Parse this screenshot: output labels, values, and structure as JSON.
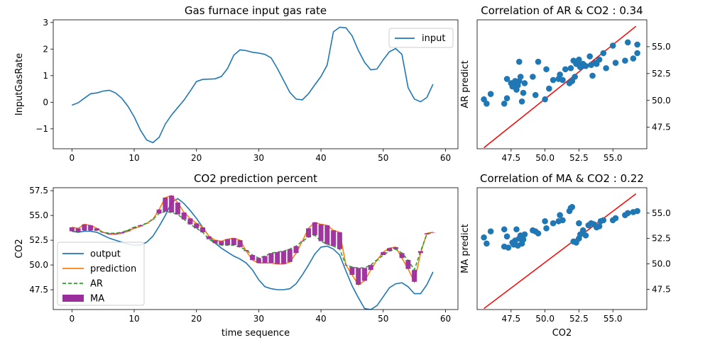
{
  "chart_data": [
    {
      "type": "line",
      "title": "Gas furnace input gas rate",
      "xlabel": "",
      "ylabel": "InputGasRate",
      "xlim": [
        -3,
        62
      ],
      "ylim": [
        -1.75,
        3.1
      ],
      "xticks": [
        0,
        10,
        20,
        30,
        40,
        50,
        60
      ],
      "yticks": [
        -1,
        0,
        1,
        2,
        3
      ],
      "xtick_labels": [
        "0",
        "10",
        "20",
        "30",
        "40",
        "50",
        "60"
      ],
      "ytick_labels": [
        "−1",
        "0",
        "1",
        "2",
        "3"
      ],
      "legend": "top-right",
      "series": [
        {
          "name": "input",
          "color": "#1f77b4",
          "values": [
            -0.11,
            -0.02,
            0.15,
            0.32,
            0.35,
            0.42,
            0.45,
            0.35,
            0.15,
            -0.15,
            -0.55,
            -1.05,
            -1.42,
            -1.52,
            -1.32,
            -0.82,
            -0.48,
            -0.2,
            0.08,
            0.42,
            0.78,
            0.86,
            0.87,
            0.88,
            0.97,
            1.27,
            1.77,
            1.97,
            1.94,
            1.88,
            1.85,
            1.8,
            1.67,
            1.27,
            0.82,
            0.37,
            0.12,
            0.09,
            0.32,
            0.65,
            0.97,
            1.4,
            2.65,
            2.82,
            2.8,
            2.5,
            1.95,
            1.5,
            1.22,
            1.25,
            1.6,
            1.9,
            2.02,
            1.8,
            0.55,
            0.12,
            0.02,
            0.18,
            0.68
          ]
        }
      ]
    },
    {
      "type": "line",
      "title": "CO2 prediction percent",
      "xlabel": "time sequence",
      "ylabel": "CO2",
      "xlim": [
        -3,
        62
      ],
      "ylim": [
        45.5,
        57.8
      ],
      "xticks": [
        0,
        10,
        20,
        30,
        40,
        50,
        60
      ],
      "yticks": [
        47.5,
        50.0,
        52.5,
        55.0,
        57.5
      ],
      "xtick_labels": [
        "0",
        "10",
        "20",
        "30",
        "40",
        "50",
        "60"
      ],
      "ytick_labels": [
        "47.5",
        "50.0",
        "52.5",
        "55.0",
        "57.5"
      ],
      "legend": "bottom-left",
      "series": [
        {
          "name": "output",
          "color": "#1f77b4",
          "style": "solid",
          "values": [
            53.4,
            53.3,
            53.4,
            53.4,
            53.3,
            53.0,
            52.7,
            52.5,
            52.3,
            52.1,
            52.0,
            52.0,
            52.3,
            52.9,
            53.9,
            55.0,
            56.3,
            56.7,
            56.2,
            55.5,
            54.7,
            53.8,
            52.9,
            52.2,
            51.7,
            51.3,
            50.9,
            50.6,
            50.2,
            49.5,
            48.5,
            47.8,
            47.6,
            47.5,
            47.5,
            47.6,
            48.1,
            49.0,
            50.0,
            51.1,
            51.8,
            51.9,
            51.6,
            51.0,
            49.4,
            47.9,
            46.7,
            45.6,
            45.5,
            45.9,
            46.8,
            47.7,
            48.1,
            48.2,
            47.8,
            47.1,
            47.1,
            48.0,
            49.3
          ]
        },
        {
          "name": "prediction",
          "color": "#ff7f0e",
          "style": "solid",
          "values": [
            53.8,
            53.7,
            54.1,
            54.0,
            53.7,
            53.3,
            53.1,
            53.1,
            53.2,
            53.4,
            53.7,
            53.9,
            54.2,
            54.6,
            55.6,
            56.8,
            57.0,
            56.3,
            55.3,
            54.7,
            54.2,
            53.8,
            52.9,
            52.5,
            52.4,
            52.6,
            52.7,
            52.5,
            51.4,
            50.5,
            50.2,
            50.2,
            50.2,
            50.1,
            50.1,
            50.3,
            51.2,
            52.4,
            53.7,
            54.3,
            54.1,
            54.0,
            53.5,
            53.3,
            50.0,
            49.0,
            48.0,
            48.4,
            49.5,
            50.5,
            51.3,
            51.7,
            51.8,
            50.7,
            49.6,
            48.3,
            51.2,
            53.2,
            53.3
          ]
        },
        {
          "name": "AR",
          "color": "#2ca02c",
          "style": "dashed",
          "values": [
            53.4,
            53.3,
            53.5,
            53.5,
            53.5,
            53.3,
            53.2,
            53.2,
            53.3,
            53.5,
            53.8,
            54.0,
            54.2,
            54.6,
            55.2,
            55.4,
            55.3,
            55.1,
            54.6,
            54.1,
            53.7,
            53.3,
            52.6,
            52.2,
            52.0,
            52.0,
            52.0,
            51.8,
            51.5,
            51.0,
            50.7,
            50.9,
            51.2,
            51.3,
            51.4,
            51.6,
            51.9,
            52.4,
            52.8,
            53.0,
            52.4,
            52.1,
            51.9,
            51.6,
            50.0,
            49.8,
            49.7,
            49.7,
            50.0,
            50.5,
            51.0,
            51.4,
            51.6,
            51.2,
            50.5,
            49.5,
            51.4,
            53.1,
            53.3
          ]
        },
        {
          "name": "MA",
          "color": "#9b2c9c",
          "style": "bars",
          "values": [
            0.4,
            0.4,
            0.6,
            0.5,
            0.2,
            0.0,
            -0.1,
            -0.1,
            -0.1,
            -0.1,
            -0.1,
            -0.1,
            0.0,
            0.0,
            0.4,
            1.4,
            1.7,
            1.2,
            0.7,
            0.6,
            0.5,
            0.5,
            0.3,
            0.3,
            0.4,
            0.6,
            0.7,
            0.7,
            -0.1,
            -0.5,
            -0.5,
            -0.7,
            -1.0,
            -1.2,
            -1.3,
            -1.3,
            -0.7,
            0.0,
            0.9,
            1.3,
            1.7,
            1.9,
            1.6,
            1.7,
            0.0,
            -0.8,
            -1.7,
            -1.3,
            -0.5,
            0.0,
            0.3,
            0.3,
            0.2,
            -0.5,
            -0.9,
            -1.2,
            -0.2,
            0.1,
            0.0
          ]
        }
      ]
    },
    {
      "type": "scatter",
      "title": "Correlation of AR & CO2 : 0.34",
      "xlabel": "",
      "ylabel": "AR predict",
      "xlim": [
        45.0,
        57.5
      ],
      "ylim": [
        45.5,
        57.5
      ],
      "xticks": [
        47.5,
        50.0,
        52.5,
        55.0
      ],
      "yticks": [
        47.5,
        50.0,
        52.5,
        55.0
      ],
      "xtick_labels": [
        "47.5",
        "50.0",
        "52.5",
        "55.0"
      ],
      "ytick_labels": [
        "47.5",
        "50.0",
        "52.5",
        "55.0"
      ],
      "ytick_side": "right",
      "point_color": "#1f77b4",
      "line_color": "#ff0000",
      "reference_line": [
        [
          45.5,
          45.6
        ],
        [
          56.7,
          56.9
        ]
      ],
      "points": [
        [
          45.5,
          50.1
        ],
        [
          45.7,
          49.7
        ],
        [
          46.0,
          50.6
        ],
        [
          47.0,
          49.7
        ],
        [
          47.2,
          50.2
        ],
        [
          47.2,
          52.0
        ],
        [
          47.5,
          51.6
        ],
        [
          47.6,
          51.3
        ],
        [
          47.7,
          51.5
        ],
        [
          47.8,
          51.8
        ],
        [
          47.9,
          51.0
        ],
        [
          48.0,
          51.4
        ],
        [
          48.1,
          51.8
        ],
        [
          48.1,
          53.6
        ],
        [
          48.2,
          52.2
        ],
        [
          48.3,
          49.9
        ],
        [
          48.4,
          50.7
        ],
        [
          48.5,
          51.6
        ],
        [
          49.1,
          52.2
        ],
        [
          49.3,
          50.5
        ],
        [
          49.5,
          53.6
        ],
        [
          50.0,
          50.1
        ],
        [
          50.1,
          52.9
        ],
        [
          50.3,
          51.1
        ],
        [
          50.6,
          51.9
        ],
        [
          51.0,
          52.0
        ],
        [
          51.1,
          52.4
        ],
        [
          51.3,
          51.9
        ],
        [
          51.5,
          52.9
        ],
        [
          51.8,
          51.6
        ],
        [
          51.9,
          53.0
        ],
        [
          52.0,
          51.8
        ],
        [
          52.1,
          53.7
        ],
        [
          52.2,
          52.2
        ],
        [
          52.3,
          53.4
        ],
        [
          52.5,
          53.8
        ],
        [
          52.5,
          53.3
        ],
        [
          52.6,
          53.1
        ],
        [
          52.8,
          53.4
        ],
        [
          53.0,
          53.2
        ],
        [
          53.3,
          54.1
        ],
        [
          53.4,
          53.3
        ],
        [
          53.5,
          52.3
        ],
        [
          53.7,
          53.5
        ],
        [
          53.8,
          53.4
        ],
        [
          54.0,
          53.8
        ],
        [
          54.3,
          54.4
        ],
        [
          54.5,
          53.0
        ],
        [
          55.0,
          55.1
        ],
        [
          55.2,
          53.5
        ],
        [
          55.9,
          53.7
        ],
        [
          56.1,
          55.4
        ],
        [
          56.5,
          53.9
        ],
        [
          56.8,
          54.4
        ],
        [
          56.8,
          55.2
        ]
      ]
    },
    {
      "type": "scatter",
      "title": "Correlation of MA & CO2 : 0.22",
      "xlabel": "CO2",
      "ylabel": "MA predict",
      "xlim": [
        45.0,
        57.5
      ],
      "ylim": [
        45.5,
        57.5
      ],
      "xticks": [
        47.5,
        50.0,
        52.5,
        55.0
      ],
      "yticks": [
        47.5,
        50.0,
        52.5,
        55.0
      ],
      "xtick_labels": [
        "47.5",
        "50.0",
        "52.5",
        "55.0"
      ],
      "ytick_labels": [
        "47.5",
        "50.0",
        "52.5",
        "55.0"
      ],
      "ytick_side": "right",
      "point_color": "#1f77b4",
      "line_color": "#ff0000",
      "reference_line": [
        [
          45.5,
          45.6
        ],
        [
          56.7,
          56.9
        ]
      ],
      "points": [
        [
          45.5,
          52.6
        ],
        [
          45.7,
          52.0
        ],
        [
          46.0,
          53.2
        ],
        [
          47.0,
          53.4
        ],
        [
          47.0,
          51.7
        ],
        [
          47.2,
          52.7
        ],
        [
          47.3,
          51.6
        ],
        [
          47.6,
          52.1
        ],
        [
          47.7,
          51.9
        ],
        [
          47.8,
          52.3
        ],
        [
          47.9,
          53.4
        ],
        [
          48.0,
          51.8
        ],
        [
          48.1,
          52.5
        ],
        [
          48.2,
          52.8
        ],
        [
          48.3,
          52.0
        ],
        [
          48.4,
          52.4
        ],
        [
          48.5,
          52.9
        ],
        [
          49.1,
          53.3
        ],
        [
          49.3,
          53.2
        ],
        [
          49.5,
          53.0
        ],
        [
          50.0,
          54.2
        ],
        [
          50.1,
          53.5
        ],
        [
          50.6,
          54.0
        ],
        [
          51.0,
          54.2
        ],
        [
          51.1,
          54.8
        ],
        [
          51.3,
          54.3
        ],
        [
          51.8,
          55.2
        ],
        [
          51.9,
          55.5
        ],
        [
          52.0,
          55.6
        ],
        [
          52.1,
          52.2
        ],
        [
          52.3,
          52.1
        ],
        [
          52.5,
          52.5
        ],
        [
          52.5,
          54.0
        ],
        [
          52.6,
          52.9
        ],
        [
          52.8,
          53.3
        ],
        [
          53.0,
          52.8
        ],
        [
          53.2,
          53.8
        ],
        [
          53.4,
          54.0
        ],
        [
          53.6,
          53.9
        ],
        [
          53.8,
          53.6
        ],
        [
          54.0,
          53.7
        ],
        [
          54.1,
          54.2
        ],
        [
          54.3,
          54.3
        ],
        [
          55.0,
          54.3
        ],
        [
          55.2,
          54.5
        ],
        [
          55.9,
          54.8
        ],
        [
          56.1,
          55.0
        ],
        [
          56.5,
          55.1
        ],
        [
          56.8,
          55.2
        ]
      ]
    }
  ]
}
